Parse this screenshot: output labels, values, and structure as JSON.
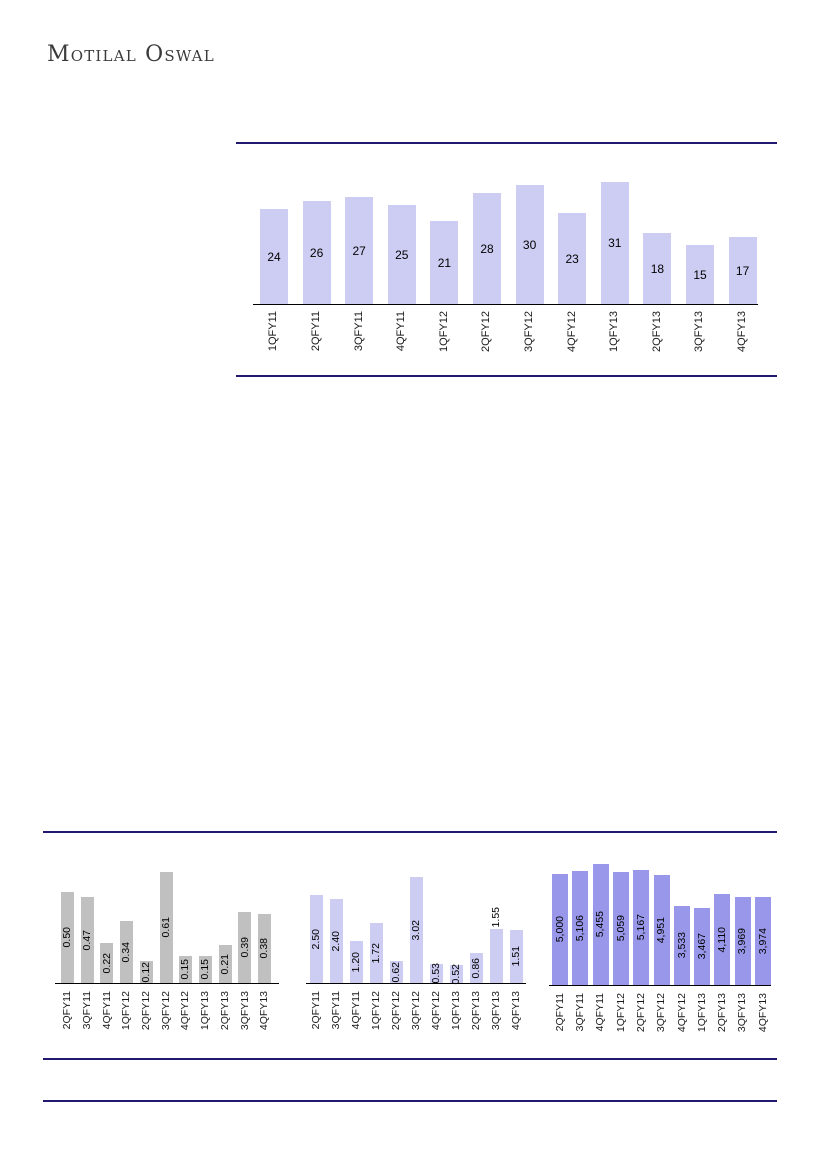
{
  "page": {
    "logo_text": "Motilal Oswal"
  },
  "colors": {
    "divider_line": "#21186F",
    "axis_line": "#000000",
    "bar_light_lavender": "#CDCDF3",
    "bar_gray": "#C0C0C0",
    "bar_purple": "#9897E9",
    "label_text": "#000000"
  },
  "chart_data": [
    {
      "id": "quarterly-values-top",
      "type": "bar",
      "title": "",
      "xlabel": "",
      "ylabel": "",
      "categories": [
        "1QFY11",
        "2QFY11",
        "3QFY11",
        "4QFY11",
        "1QFY12",
        "2QFY12",
        "3QFY12",
        "4QFY12",
        "1QFY13",
        "2QFY13",
        "3QFY13",
        "4QFY13"
      ],
      "values": [
        24,
        26,
        27,
        25,
        21,
        28,
        30,
        23,
        31,
        18,
        15,
        17
      ],
      "value_labels": [
        "24",
        "26",
        "27",
        "25",
        "21",
        "28",
        "30",
        "23",
        "31",
        "18",
        "15",
        "17"
      ],
      "bar_color": "#CDCDF3",
      "ylim": [
        0,
        40
      ],
      "grid": false,
      "legend": "none",
      "value_label_orientation": "horizontal",
      "category_label_rotation_deg": 90
    },
    {
      "id": "quarterly-ratio-left",
      "type": "bar",
      "title": "",
      "xlabel": "",
      "ylabel": "",
      "categories": [
        "2QFY11",
        "3QFY11",
        "4QFY11",
        "1QFY12",
        "2QFY12",
        "3QFY12",
        "4QFY12",
        "1QFY13",
        "2QFY13",
        "3QFY13",
        "4QFY13"
      ],
      "values": [
        0.5,
        0.47,
        0.22,
        0.34,
        0.12,
        0.61,
        0.15,
        0.15,
        0.21,
        0.39,
        0.38
      ],
      "value_labels": [
        "0.50",
        "0.47",
        "0.22",
        "0.34",
        "0.12",
        "0.61",
        "0.15",
        "0.15",
        "0.21",
        "0.39",
        "0.38"
      ],
      "bar_color": "#C0C0C0",
      "ylim": [
        0,
        0.68
      ],
      "grid": false,
      "legend": "none",
      "value_label_orientation": "vertical",
      "category_label_rotation_deg": 90
    },
    {
      "id": "quarterly-ratio-middle",
      "type": "bar",
      "title": "",
      "xlabel": "",
      "ylabel": "",
      "categories": [
        "2QFY11",
        "3QFY11",
        "4QFY11",
        "1QFY12",
        "2QFY12",
        "3QFY12",
        "4QFY12",
        "1QFY13",
        "2QFY13",
        "3QFY13",
        "4QFY13"
      ],
      "values": [
        2.5,
        2.4,
        1.2,
        1.72,
        0.62,
        3.02,
        0.53,
        0.52,
        0.86,
        1.55,
        1.51
      ],
      "value_labels": [
        "2.50",
        "2.40",
        "1.20",
        "1.72",
        "0.62",
        "3.02",
        "0.53",
        "0.52",
        "0.86",
        "1.55",
        "1.51"
      ],
      "bar_color": "#CDCDF3",
      "ylim": [
        0,
        3.5
      ],
      "grid": false,
      "legend": "none",
      "value_label_orientation": "vertical",
      "outside_value_label_indices": [
        9
      ],
      "category_label_rotation_deg": 90
    },
    {
      "id": "quarterly-volume-right",
      "type": "bar",
      "title": "",
      "xlabel": "",
      "ylabel": "",
      "categories": [
        "2QFY11",
        "3QFY11",
        "4QFY11",
        "1QFY12",
        "2QFY12",
        "3QFY12",
        "4QFY12",
        "1QFY13",
        "2QFY13",
        "3QFY13",
        "4QFY13"
      ],
      "values": [
        5000,
        5106,
        5455,
        5059,
        5167,
        4951,
        3533,
        3467,
        4110,
        3969,
        3974
      ],
      "value_labels": [
        "5,000",
        "5,106",
        "5,455",
        "5,059",
        "5,167",
        "4,951",
        "3,533",
        "3,467",
        "4,110",
        "3,969",
        "3,974"
      ],
      "bar_color": "#9897E9",
      "ylim": [
        0,
        5600
      ],
      "grid": false,
      "legend": "none",
      "value_label_orientation": "vertical",
      "category_label_rotation_deg": 90
    }
  ],
  "dividers": {
    "count": 3
  }
}
